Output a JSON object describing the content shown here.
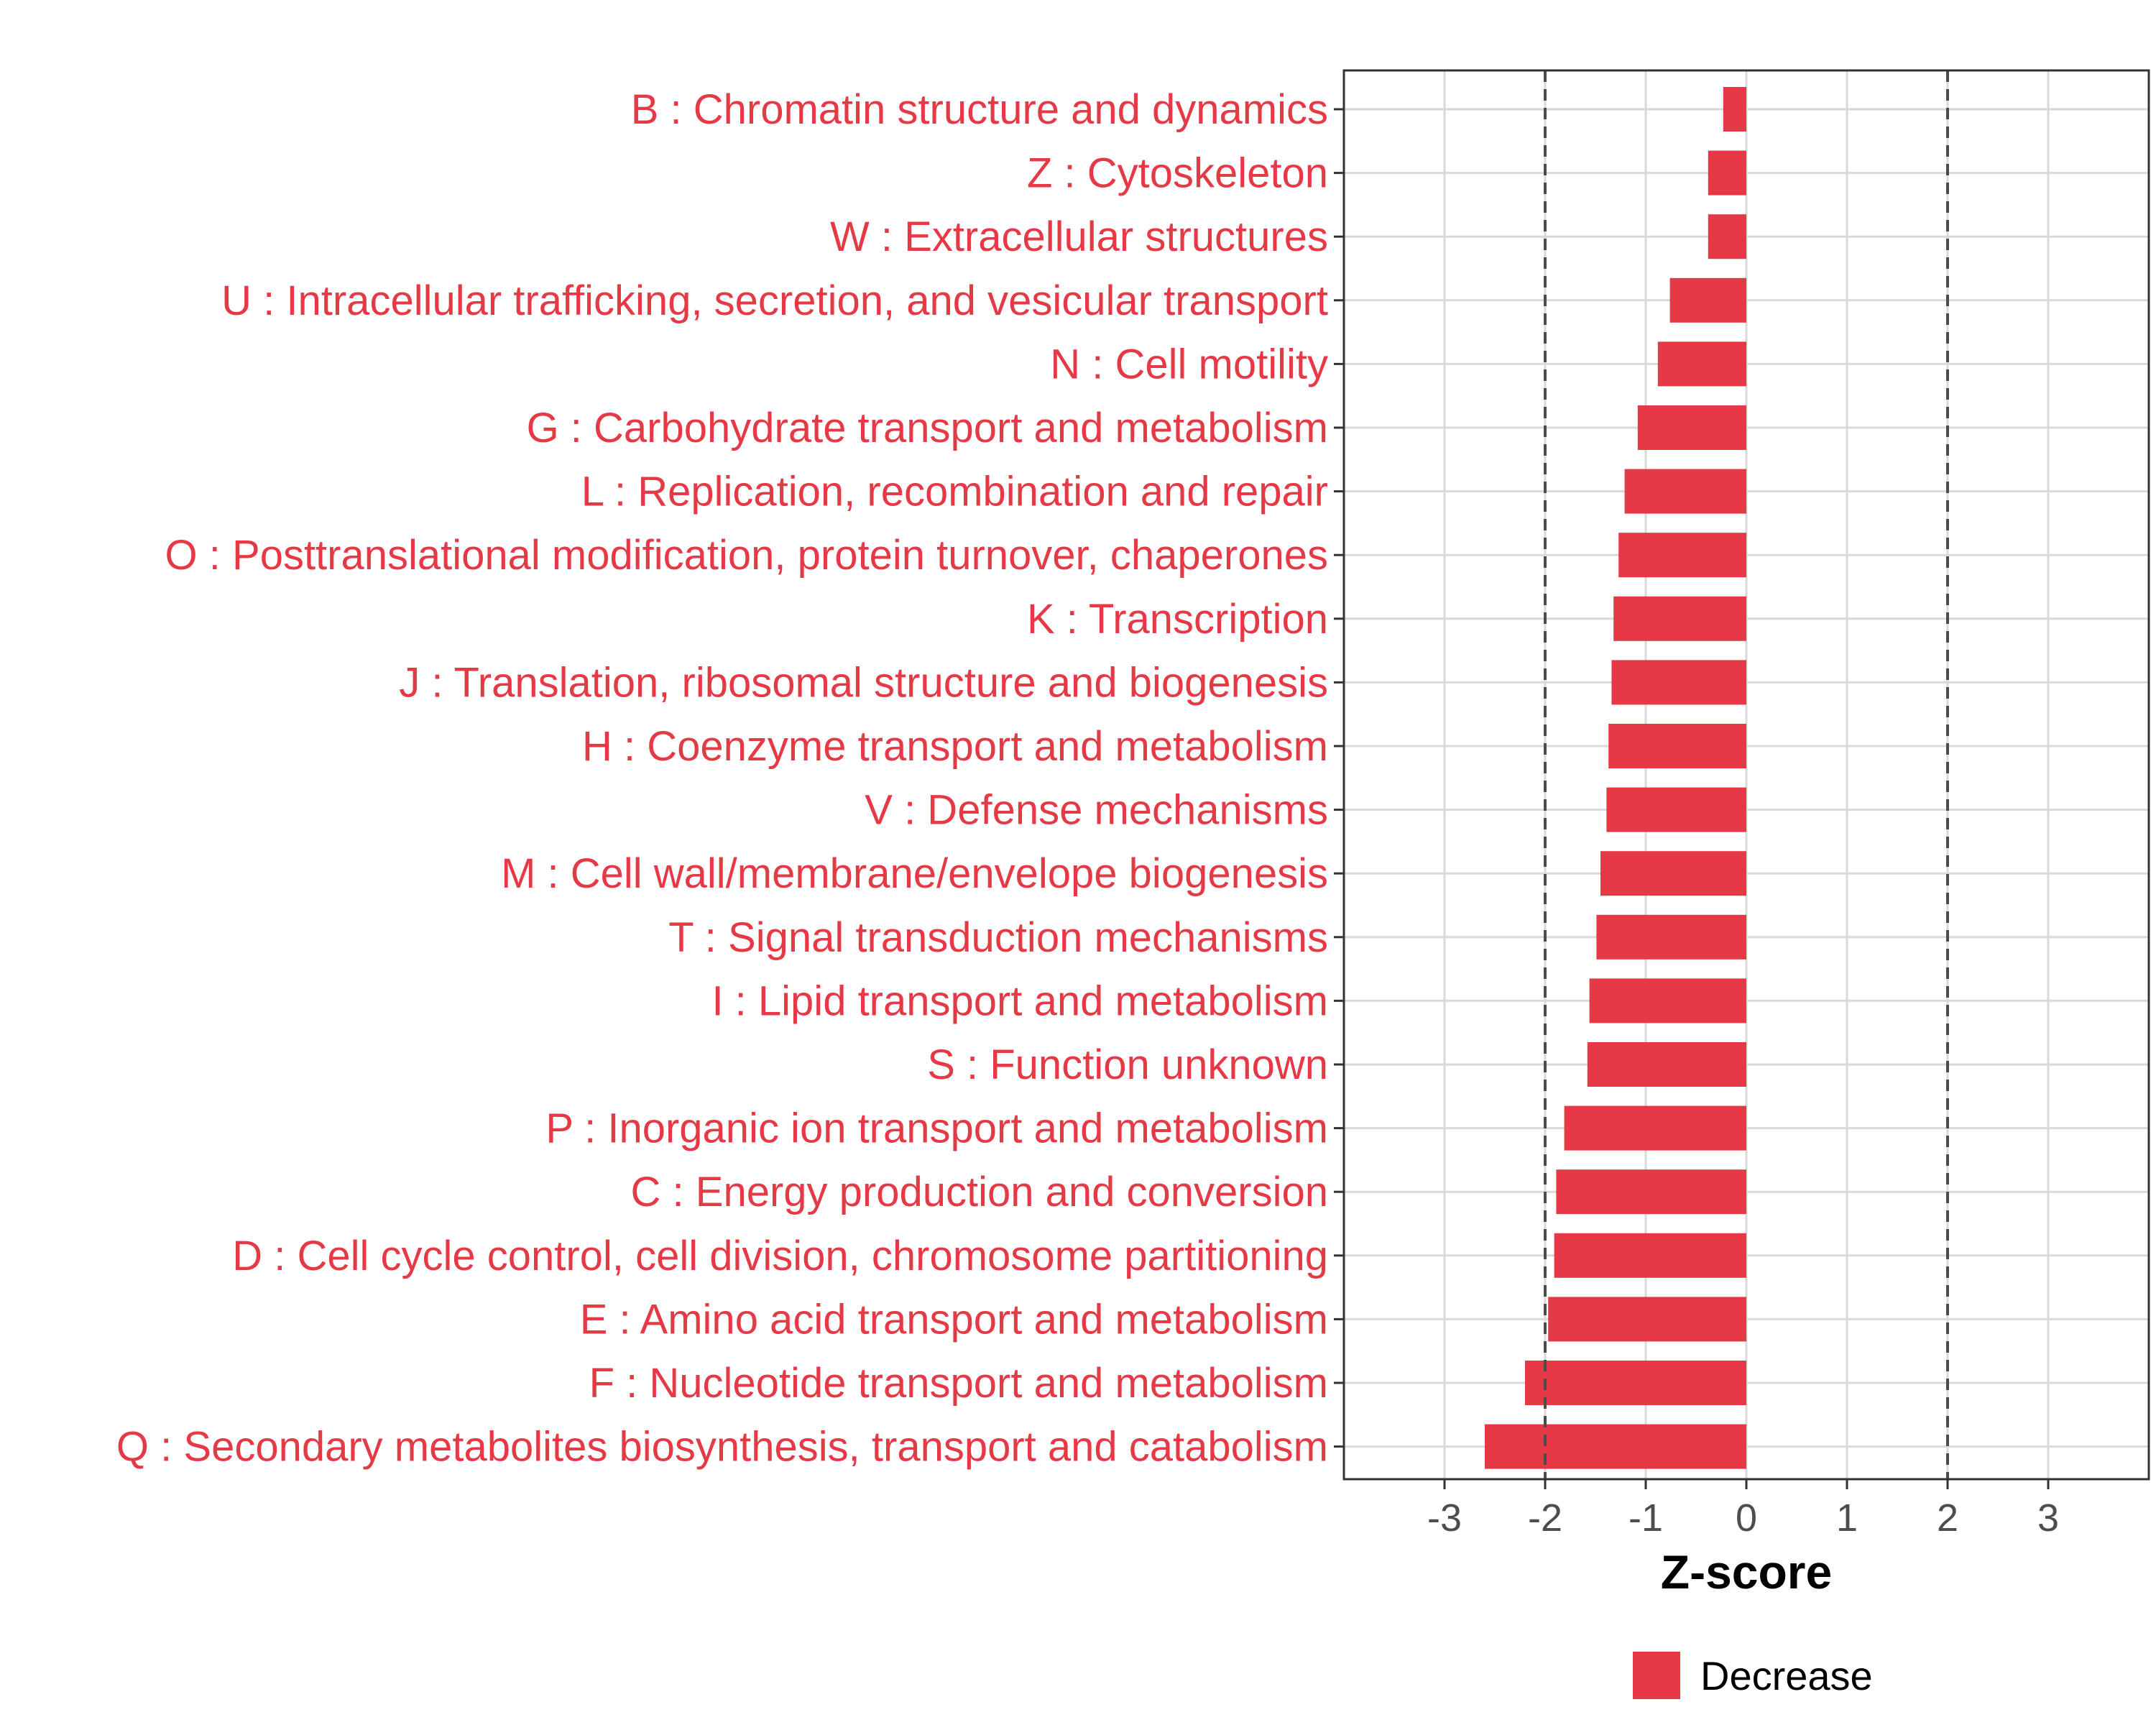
{
  "chart_data": {
    "type": "bar",
    "orientation": "horizontal",
    "title": "",
    "xlabel": "Z-score",
    "ylabel": "",
    "xlim": [
      -4,
      4
    ],
    "xticks": [
      "-3",
      "-2",
      "-1",
      "0",
      "1",
      "2",
      "3"
    ],
    "xtick_values": [
      -3,
      -2,
      -1,
      0,
      1,
      2,
      3
    ],
    "reference_lines": [
      -2,
      2
    ],
    "grid": true,
    "legend": {
      "position": "bottom",
      "entries": [
        {
          "label": "Decrease",
          "color": "#E63946"
        }
      ]
    },
    "colors": {
      "bar": "#E63946",
      "label": "#E63946",
      "grid": "#d9d9d9",
      "ref_line": "#4d4d4d"
    },
    "categories": [
      "B : Chromatin structure and dynamics",
      "Z : Cytoskeleton",
      "W : Extracellular structures",
      "U : Intracellular trafficking, secretion, and vesicular transport",
      "N : Cell motility",
      "G : Carbohydrate transport and metabolism",
      "L : Replication, recombination and repair",
      "O : Posttranslational modification, protein turnover, chaperones",
      "K : Transcription",
      "J : Translation, ribosomal structure and biogenesis",
      "H : Coenzyme transport and metabolism",
      "V : Defense mechanisms",
      "M : Cell wall/membrane/envelope biogenesis",
      "T : Signal transduction mechanisms",
      "I : Lipid transport and metabolism",
      "S : Function unknown",
      "P : Inorganic ion transport and metabolism",
      "C : Energy production and conversion",
      "D : Cell cycle control, cell division, chromosome partitioning",
      "E : Amino acid transport and metabolism",
      "F : Nucleotide transport and metabolism",
      "Q : Secondary metabolites biosynthesis, transport and catabolism"
    ],
    "values": [
      -0.23,
      -0.38,
      -0.38,
      -0.76,
      -0.88,
      -1.08,
      -1.21,
      -1.27,
      -1.32,
      -1.34,
      -1.37,
      -1.39,
      -1.45,
      -1.49,
      -1.56,
      -1.58,
      -1.81,
      -1.89,
      -1.91,
      -1.97,
      -2.2,
      -2.6
    ]
  }
}
